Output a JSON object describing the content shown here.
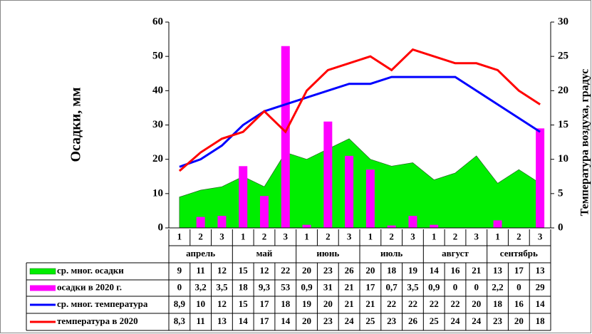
{
  "chart_data": {
    "type": "combo",
    "categories": [
      "1",
      "2",
      "3",
      "1",
      "2",
      "3",
      "1",
      "2",
      "3",
      "1",
      "2",
      "3",
      "1",
      "2",
      "3",
      "1",
      "2",
      "3"
    ],
    "groups": [
      "апрель",
      "май",
      "июнь",
      "июль",
      "август",
      "сентябрь"
    ],
    "ylabel": "Осадки, мм",
    "y2label": "Температура воздуха, градус",
    "ylim": [
      0,
      60
    ],
    "yticks": [
      0,
      10,
      20,
      30,
      40,
      50,
      60
    ],
    "y2lim": [
      0,
      30
    ],
    "y2ticks": [
      0,
      5,
      10,
      15,
      20,
      25,
      30
    ],
    "series": [
      {
        "name": "ср. мног. осадки",
        "type": "area",
        "color": "#00ee00",
        "values": [
          9,
          11,
          12,
          15,
          12,
          22,
          20,
          23,
          26,
          20,
          18,
          19,
          14,
          16,
          21,
          13,
          17,
          13
        ]
      },
      {
        "name": "осадки в 2020 г.",
        "type": "bar",
        "color": "#ff00ff",
        "values": [
          0,
          3.2,
          3.5,
          18,
          9.3,
          53,
          0.9,
          31,
          21,
          17,
          0.7,
          3.5,
          0.9,
          0,
          0,
          2.2,
          0,
          29
        ],
        "value_labels": [
          "0",
          "3,2",
          "3,5",
          "18",
          "9,3",
          "53",
          "0,9",
          "31",
          "21",
          "17",
          "0,7",
          "3,5",
          "0,9",
          "0",
          "0",
          "2,2",
          "0",
          "29"
        ]
      },
      {
        "name": "ср. мног. температура",
        "type": "line",
        "axis": "y2",
        "color": "#0000ff",
        "values": [
          8.9,
          10,
          12,
          15,
          17,
          18,
          19,
          20,
          21,
          21,
          22,
          22,
          22,
          22,
          20,
          18,
          16,
          14
        ],
        "value_labels": [
          "8,9",
          "10",
          "12",
          "15",
          "17",
          "18",
          "19",
          "20",
          "21",
          "21",
          "22",
          "22",
          "22",
          "22",
          "20",
          "18",
          "16",
          "14"
        ]
      },
      {
        "name": "температура в 2020",
        "type": "line",
        "axis": "y2",
        "color": "#ff0000",
        "values": [
          8.3,
          11,
          13,
          14,
          17,
          14,
          20,
          23,
          24,
          25,
          23,
          26,
          25,
          24,
          24,
          23,
          20,
          18
        ],
        "value_labels": [
          "8,3",
          "11",
          "13",
          "14",
          "17",
          "14",
          "20",
          "23",
          "24",
          "25",
          "23",
          "26",
          "25",
          "24",
          "24",
          "23",
          "20",
          "18"
        ]
      }
    ]
  }
}
